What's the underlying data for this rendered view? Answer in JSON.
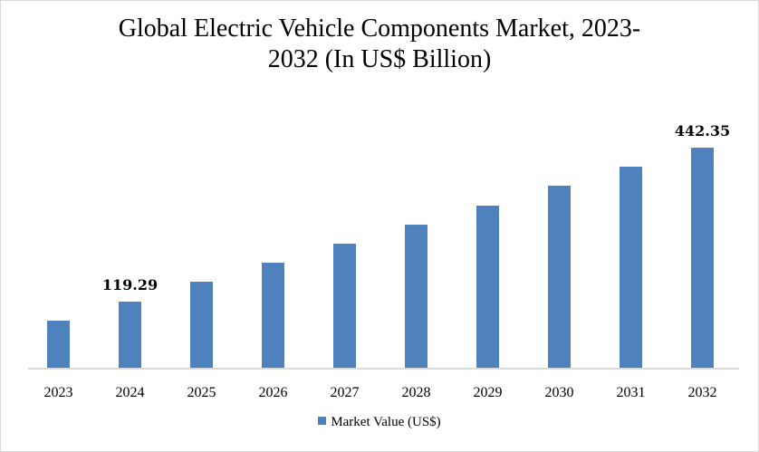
{
  "chart_data": {
    "type": "bar",
    "title_lines": [
      "Global Electric Vehicle Components Market, 2023-",
      "2032 (In US$ Billion)"
    ],
    "categories": [
      "2023",
      "2024",
      "2025",
      "2026",
      "2027",
      "2028",
      "2029",
      "2030",
      "2031",
      "2032"
    ],
    "series": [
      {
        "name": "Market Value (US$)",
        "color": "#4f81bd",
        "values": [
          79.4,
          119.29,
          161.1,
          201.0,
          240.9,
          280.8,
          320.7,
          362.6,
          402.5,
          442.35
        ]
      }
    ],
    "data_labels": [
      {
        "index": 1,
        "text": "119.29"
      },
      {
        "index": 9,
        "text": "442.35"
      }
    ],
    "xlabel": "",
    "ylabel": "",
    "ylim": [
      -19.4,
      450
    ],
    "grid": false,
    "y_axis_visible": false,
    "legend_position": "bottom"
  }
}
